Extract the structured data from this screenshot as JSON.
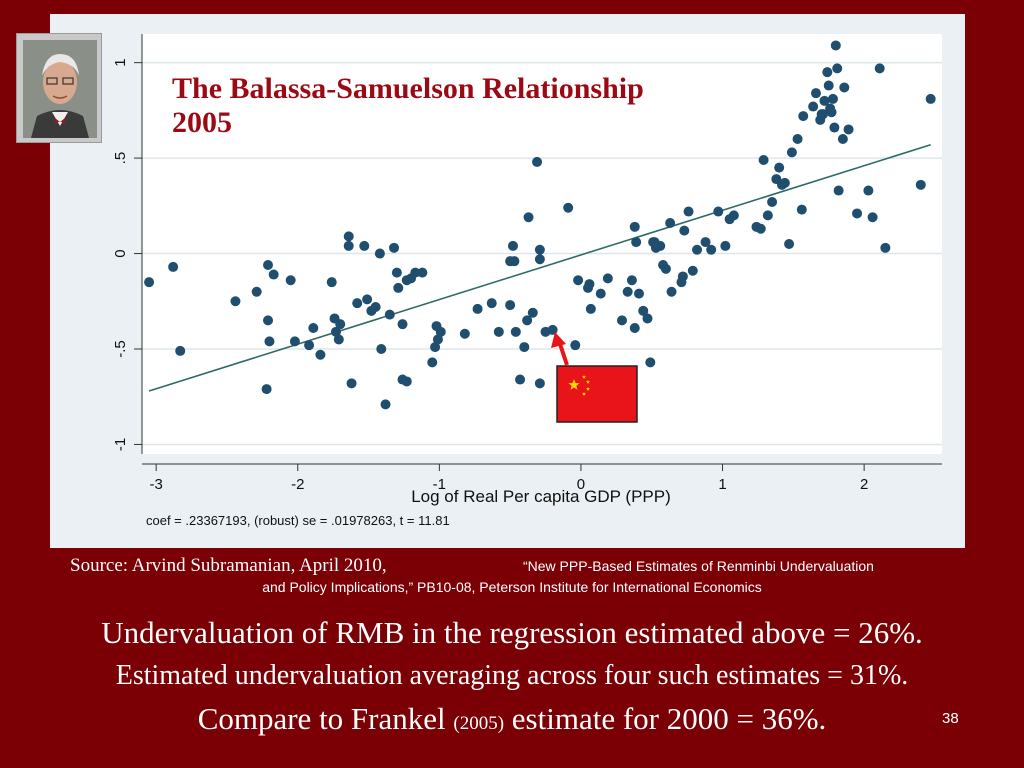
{
  "slide": {
    "title_line1": "The Balassa-Samuelson Relationship",
    "title_line2": "2005",
    "source_line1": "Source: Arvind Subramanian, April 2010,",
    "source_line1b": "“New PPP-Based Estimates of Renminbi Undervaluation",
    "source_line2": "and Policy Implications,” PB10-08, Peterson Institute for International Economics",
    "text1": "Undervaluation of RMB in the regression estimated above = 26%.",
    "text2": "Estimated undervaluation averaging across four such estimates = 31%.",
    "text3_a": "Compare to Frankel ",
    "text3_b": "(2005)",
    "text3_c": " estimate for 2000 = 36%.",
    "slide_number": "38",
    "colors": {
      "background": "#7a0006",
      "title": "#9b0a14",
      "points": "#1f4e6e",
      "fit_line": "#2e6b66",
      "panel": "#eaf0f4"
    }
  },
  "chart_data": {
    "type": "scatter",
    "xlabel": "Log of Real Per capita GDP (PPP)",
    "ylabel": "",
    "xlim": [
      -3.1,
      2.55
    ],
    "ylim": [
      -1.05,
      1.15
    ],
    "xticks": [
      -3,
      -2,
      -1,
      0,
      1,
      2
    ],
    "xtick_labels": [
      "-3",
      "-2",
      "-1",
      "0",
      "1",
      "2"
    ],
    "yticks": [
      1,
      0.5,
      0,
      -0.5,
      -1
    ],
    "ytick_labels": [
      "1",
      ".5",
      "0",
      "-.5",
      "-1"
    ],
    "grid": "horizontal",
    "note": "coef = .23367193, (robust) se = .01978263, t = 11.81",
    "fit_line": {
      "x": [
        -3.05,
        2.47
      ],
      "y": [
        -0.72,
        0.57
      ]
    },
    "highlight_country": "China",
    "points": [
      [
        -3.05,
        -0.15
      ],
      [
        -2.88,
        -0.07
      ],
      [
        -2.83,
        -0.51
      ],
      [
        -2.44,
        -0.25
      ],
      [
        -2.29,
        -0.2
      ],
      [
        -2.22,
        -0.71
      ],
      [
        -2.21,
        -0.06
      ],
      [
        -2.21,
        -0.35
      ],
      [
        -2.2,
        -0.46
      ],
      [
        -2.17,
        -0.11
      ],
      [
        -2.05,
        -0.14
      ],
      [
        -2.02,
        -0.46
      ],
      [
        -1.92,
        -0.48
      ],
      [
        -1.89,
        -0.39
      ],
      [
        -1.84,
        -0.53
      ],
      [
        -1.76,
        -0.15
      ],
      [
        -1.74,
        -0.34
      ],
      [
        -1.73,
        -0.41
      ],
      [
        -1.71,
        -0.45
      ],
      [
        -1.7,
        -0.37
      ],
      [
        -1.64,
        0.04
      ],
      [
        -1.64,
        0.09
      ],
      [
        -1.62,
        -0.68
      ],
      [
        -1.58,
        -0.26
      ],
      [
        -1.53,
        0.04
      ],
      [
        -1.51,
        -0.24
      ],
      [
        -1.48,
        -0.3
      ],
      [
        -1.45,
        -0.28
      ],
      [
        -1.42,
        0.0
      ],
      [
        -1.41,
        -0.5
      ],
      [
        -1.38,
        -0.79
      ],
      [
        -1.35,
        -0.32
      ],
      [
        -1.32,
        0.03
      ],
      [
        -1.3,
        -0.1
      ],
      [
        -1.29,
        -0.18
      ],
      [
        -1.26,
        -0.37
      ],
      [
        -1.23,
        -0.14
      ],
      [
        -1.23,
        -0.67
      ],
      [
        -1.26,
        -0.66
      ],
      [
        -1.2,
        -0.13
      ],
      [
        -1.17,
        -0.1
      ],
      [
        -1.12,
        -0.1
      ],
      [
        -1.05,
        -0.57
      ],
      [
        -1.03,
        -0.49
      ],
      [
        -1.02,
        -0.38
      ],
      [
        -1.01,
        -0.45
      ],
      [
        -0.99,
        -0.41
      ],
      [
        -0.82,
        -0.42
      ],
      [
        -0.73,
        -0.29
      ],
      [
        -0.63,
        -0.26
      ],
      [
        -0.58,
        -0.41
      ],
      [
        -0.5,
        -0.04
      ],
      [
        -0.5,
        -0.27
      ],
      [
        -0.48,
        0.04
      ],
      [
        -0.47,
        -0.04
      ],
      [
        -0.46,
        -0.41
      ],
      [
        -0.43,
        -0.66
      ],
      [
        -0.4,
        -0.49
      ],
      [
        -0.38,
        -0.35
      ],
      [
        -0.37,
        0.19
      ],
      [
        -0.34,
        -0.31
      ],
      [
        -0.31,
        0.48
      ],
      [
        -0.29,
        0.02
      ],
      [
        -0.29,
        -0.68
      ],
      [
        -0.29,
        -0.03
      ],
      [
        -0.25,
        -0.41
      ],
      [
        -0.2,
        -0.4
      ],
      [
        -0.09,
        0.24
      ],
      [
        -0.04,
        -0.48
      ],
      [
        -0.02,
        -0.14
      ],
      [
        0.05,
        -0.18
      ],
      [
        0.06,
        -0.16
      ],
      [
        0.07,
        -0.29
      ],
      [
        0.14,
        -0.21
      ],
      [
        0.19,
        -0.13
      ],
      [
        0.29,
        -0.35
      ],
      [
        0.33,
        -0.2
      ],
      [
        0.38,
        0.14
      ],
      [
        0.39,
        0.06
      ],
      [
        0.38,
        -0.39
      ],
      [
        0.41,
        -0.21
      ],
      [
        0.44,
        -0.3
      ],
      [
        0.47,
        -0.34
      ],
      [
        0.49,
        -0.57
      ],
      [
        0.51,
        0.06
      ],
      [
        0.53,
        0.03
      ],
      [
        0.56,
        0.04
      ],
      [
        0.58,
        -0.06
      ],
      [
        0.6,
        -0.08
      ],
      [
        0.63,
        0.16
      ],
      [
        0.64,
        -0.2
      ],
      [
        0.71,
        -0.15
      ],
      [
        0.72,
        -0.12
      ],
      [
        0.73,
        0.12
      ],
      [
        0.76,
        0.22
      ],
      [
        0.79,
        -0.09
      ],
      [
        0.82,
        0.02
      ],
      [
        0.88,
        0.06
      ],
      [
        0.92,
        0.02
      ],
      [
        0.97,
        0.22
      ],
      [
        1.02,
        0.04
      ],
      [
        1.05,
        0.18
      ],
      [
        1.08,
        0.2
      ],
      [
        1.24,
        0.14
      ],
      [
        1.27,
        0.13
      ],
      [
        1.29,
        0.49
      ],
      [
        1.32,
        0.2
      ],
      [
        1.35,
        0.27
      ],
      [
        1.38,
        0.39
      ],
      [
        1.4,
        0.45
      ],
      [
        1.42,
        0.36
      ],
      [
        1.44,
        0.37
      ],
      [
        1.47,
        0.05
      ],
      [
        1.49,
        0.53
      ],
      [
        1.53,
        0.6
      ],
      [
        1.56,
        0.23
      ],
      [
        1.57,
        0.72
      ],
      [
        1.64,
        0.77
      ],
      [
        1.66,
        0.84
      ],
      [
        1.69,
        0.7
      ],
      [
        1.7,
        0.73
      ],
      [
        1.71,
        0.73
      ],
      [
        1.72,
        0.8
      ],
      [
        1.74,
        0.95
      ],
      [
        1.75,
        0.88
      ],
      [
        1.77,
        0.74
      ],
      [
        1.78,
        0.81
      ],
      [
        1.79,
        0.66
      ],
      [
        1.8,
        1.09
      ],
      [
        1.81,
        0.97
      ],
      [
        1.82,
        0.33
      ],
      [
        1.86,
        0.87
      ],
      [
        1.89,
        0.65
      ],
      [
        1.95,
        0.21
      ],
      [
        2.03,
        0.33
      ],
      [
        2.06,
        0.19
      ],
      [
        2.11,
        0.97
      ],
      [
        2.15,
        0.03
      ],
      [
        2.4,
        0.36
      ],
      [
        2.47,
        0.81
      ],
      [
        1.85,
        0.6
      ],
      [
        0.36,
        -0.14
      ],
      [
        0.52,
        0.06
      ],
      [
        1.76,
        0.76
      ]
    ]
  }
}
